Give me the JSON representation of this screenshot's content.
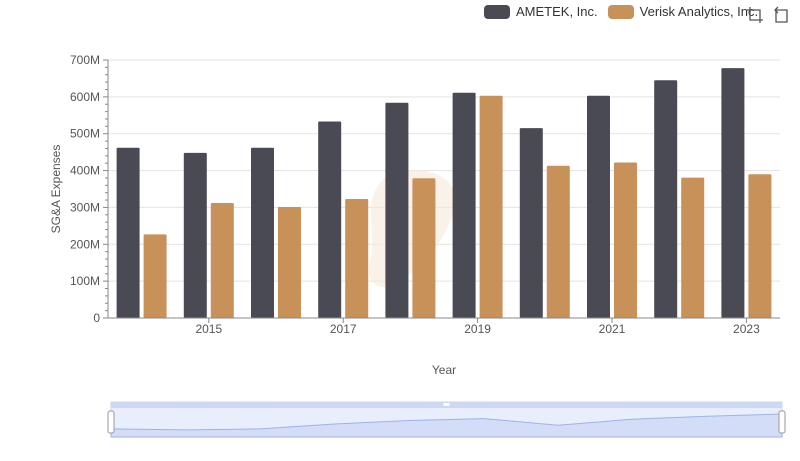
{
  "chart_data": {
    "type": "bar",
    "xlabel": "Year",
    "ylabel": "SG&A Expenses",
    "ylim": [
      0,
      700000000
    ],
    "yticks": [
      {
        "value": 0,
        "label": "0"
      },
      {
        "value": 100000000,
        "label": "100M"
      },
      {
        "value": 200000000,
        "label": "200M"
      },
      {
        "value": 300000000,
        "label": "300M"
      },
      {
        "value": 400000000,
        "label": "400M"
      },
      {
        "value": 500000000,
        "label": "500M"
      },
      {
        "value": 600000000,
        "label": "600M"
      },
      {
        "value": 700000000,
        "label": "700M"
      }
    ],
    "categories": [
      2014,
      2015,
      2016,
      2017,
      2018,
      2019,
      2020,
      2021,
      2022,
      2023
    ],
    "xtick_labels": [
      "2015",
      "2017",
      "2019",
      "2021",
      "2023"
    ],
    "grid": true,
    "legend_position": "top-right",
    "series": [
      {
        "name": "AMETEK, Inc.",
        "color": "#4a4a55",
        "values": [
          462000000,
          448000000,
          462000000,
          533000000,
          584000000,
          611000000,
          515000000,
          603000000,
          645000000,
          678000000
        ]
      },
      {
        "name": "Verisk Analytics, Inc.",
        "color": "#c8915a",
        "values": [
          227000000,
          312000000,
          301000000,
          323000000,
          379000000,
          603000000,
          413000000,
          422000000,
          381000000,
          390000000
        ]
      }
    ],
    "navigator": true
  },
  "toolbar": {
    "icons": [
      "crop-icon",
      "reset-icon"
    ]
  }
}
